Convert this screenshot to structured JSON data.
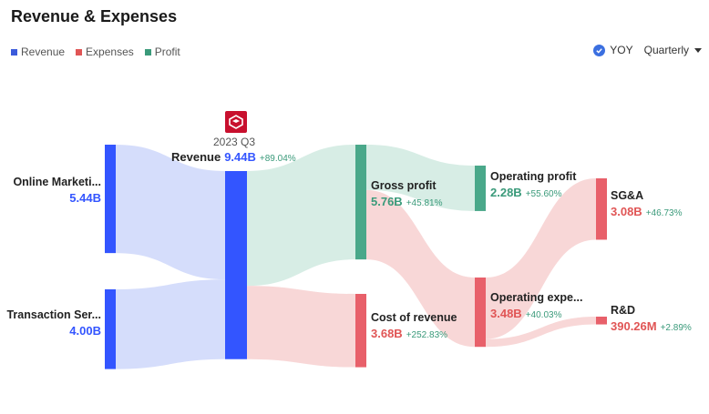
{
  "title": "Revenue & Expenses",
  "legend": [
    {
      "label": "Revenue",
      "color": "#3b5bdb"
    },
    {
      "label": "Expenses",
      "color": "#e05555"
    },
    {
      "label": "Profit",
      "color": "#3a9a7a"
    }
  ],
  "controls": {
    "yoy_label": "YOY",
    "yoy_checked": true,
    "period": "Quarterly"
  },
  "header": {
    "period_label": "2023 Q3"
  },
  "colors": {
    "revenue": "#3355ff",
    "revenue_link": "#d5ddfb",
    "profit": "#4aa88a",
    "profit_link": "#d7ede5",
    "expense": "#e8606a",
    "expense_link": "#f8d7d7"
  },
  "chart_data": {
    "type": "sankey",
    "nodes": [
      {
        "id": "online",
        "name": "Online Marketi...",
        "value": "5.44B",
        "change": ""
      },
      {
        "id": "transaction",
        "name": "Transaction Ser...",
        "value": "4.00B",
        "change": ""
      },
      {
        "id": "revenue",
        "name": "Revenue",
        "value": "9.44B",
        "change": "+89.04%"
      },
      {
        "id": "gross",
        "name": "Gross profit",
        "value": "5.76B",
        "change": "+45.81%"
      },
      {
        "id": "cost",
        "name": "Cost of revenue",
        "value": "3.68B",
        "change": "+252.83%"
      },
      {
        "id": "opprofit",
        "name": "Operating profit",
        "value": "2.28B",
        "change": "+55.60%"
      },
      {
        "id": "opexp",
        "name": "Operating expe...",
        "value": "3.48B",
        "change": "+40.03%"
      },
      {
        "id": "sga",
        "name": "SG&A",
        "value": "3.08B",
        "change": "+46.73%"
      },
      {
        "id": "rd",
        "name": "R&D",
        "value": "390.26M",
        "change": "+2.89%"
      }
    ],
    "links": [
      {
        "source": "online",
        "target": "revenue",
        "value": 5.44
      },
      {
        "source": "transaction",
        "target": "revenue",
        "value": 4.0
      },
      {
        "source": "revenue",
        "target": "gross",
        "value": 5.76
      },
      {
        "source": "revenue",
        "target": "cost",
        "value": 3.68
      },
      {
        "source": "gross",
        "target": "opprofit",
        "value": 2.28
      },
      {
        "source": "gross",
        "target": "opexp",
        "value": 3.48
      },
      {
        "source": "opexp",
        "target": "sga",
        "value": 3.08
      },
      {
        "source": "opexp",
        "target": "rd",
        "value": 0.39
      }
    ]
  }
}
